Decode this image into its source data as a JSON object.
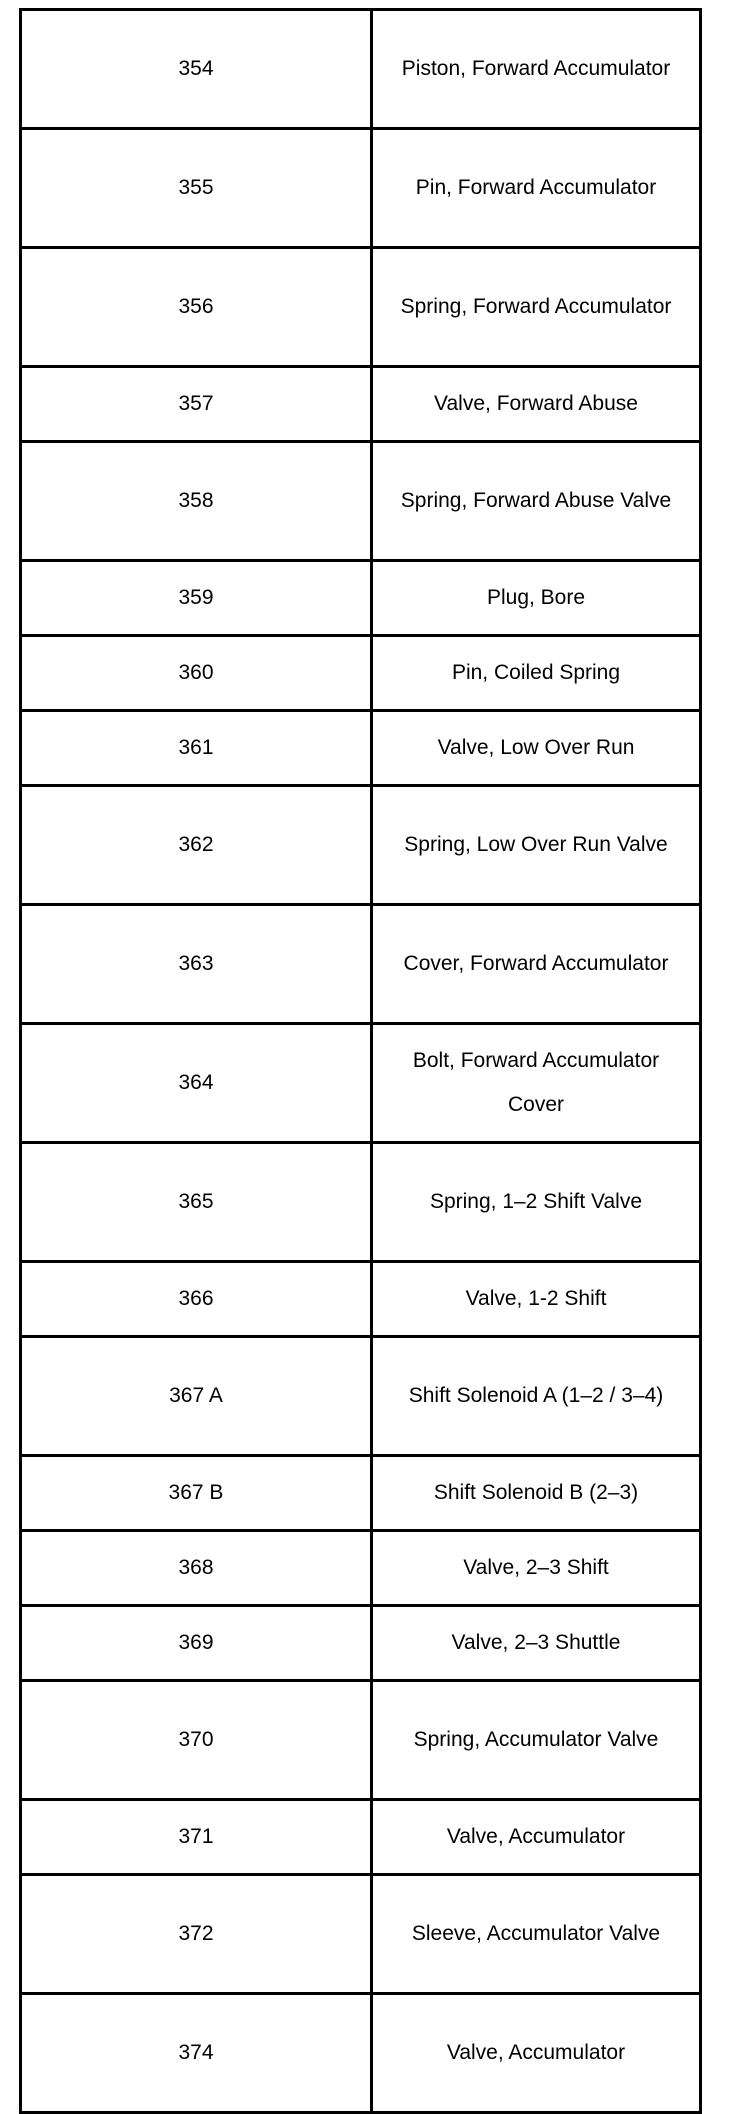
{
  "rows": [
    {
      "num": "354",
      "desc": "Piston, Forward Accumulator",
      "lines": 2
    },
    {
      "num": "355",
      "desc": "Pin, Forward Accumulator",
      "lines": 2
    },
    {
      "num": "356",
      "desc": "Spring, Forward Accumulator",
      "lines": 2
    },
    {
      "num": "357",
      "desc": "Valve, Forward Abuse",
      "lines": 1
    },
    {
      "num": "358",
      "desc": "Spring, Forward Abuse Valve",
      "lines": 2
    },
    {
      "num": "359",
      "desc": "Plug, Bore",
      "lines": 1
    },
    {
      "num": "360",
      "desc": "Pin, Coiled Spring",
      "lines": 1
    },
    {
      "num": "361",
      "desc": "Valve, Low Over Run",
      "lines": 1
    },
    {
      "num": "362",
      "desc": "Spring, Low Over Run Valve",
      "lines": 2
    },
    {
      "num": "363",
      "desc": "Cover, Forward Accumulator",
      "lines": 2
    },
    {
      "num": "364",
      "desc": "Bolt, Forward Accumulator Cover",
      "lines": 2
    },
    {
      "num": "365",
      "desc": "Spring, 1–2 Shift Valve",
      "lines": 2
    },
    {
      "num": "366",
      "desc": "Valve, 1-2 Shift",
      "lines": 1
    },
    {
      "num": "367 A",
      "desc": "Shift Solenoid A (1–2 / 3–4)",
      "lines": 2
    },
    {
      "num": "367 B",
      "desc": "Shift Solenoid B (2–3)",
      "lines": 1
    },
    {
      "num": "368",
      "desc": "Valve, 2–3 Shift",
      "lines": 1
    },
    {
      "num": "369",
      "desc": "Valve, 2–3 Shuttle",
      "lines": 1
    },
    {
      "num": "370",
      "desc": "Spring, Accumulator Valve",
      "lines": 2
    },
    {
      "num": "371",
      "desc": "Valve, Accumulator",
      "lines": 1
    },
    {
      "num": "372",
      "desc": "Sleeve, Accumulator Valve",
      "lines": 2
    },
    {
      "num": "374",
      "desc": "Valve, Accumulator",
      "lines": 2
    }
  ]
}
